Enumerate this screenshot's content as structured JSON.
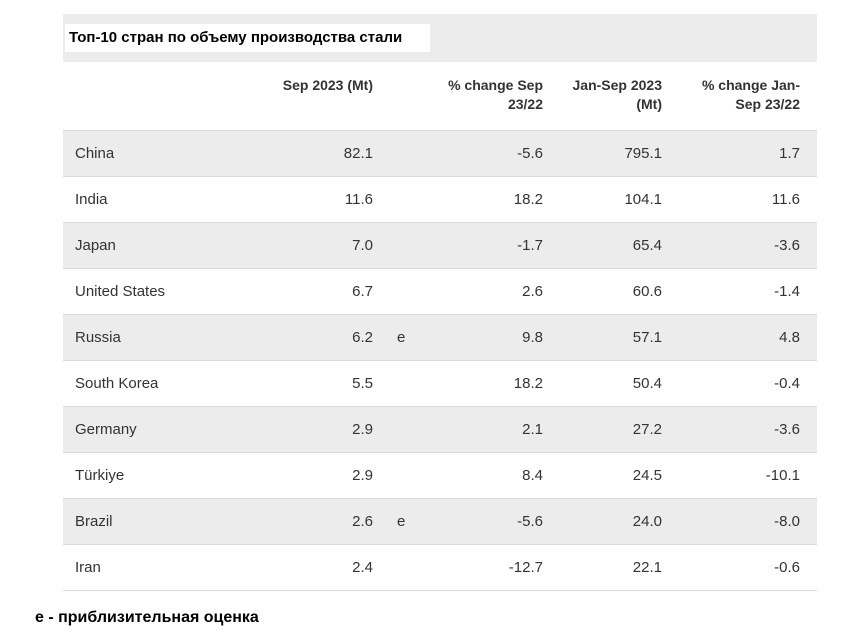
{
  "title": "Топ-10 стран по объему производства стали",
  "footnote": "e - приблизительная оценка",
  "colors": {
    "stripe_row": "#ececec",
    "title_bar": "#ececec",
    "title_highlight": "#ffffff",
    "row_border": "#dcdcdc",
    "text": "#333333"
  },
  "chart_data": {
    "type": "table",
    "title": "Топ-10 стран по объему производства стали",
    "footnote": "e - приблизительная оценка",
    "columns": {
      "country": "",
      "sep_2023_mt": "Sep 2023 (Mt)",
      "estimate_flag": "",
      "pct_change_sep_23_22": "% change Sep 23/22",
      "jan_sep_2023_mt": "Jan-Sep 2023 (Mt)",
      "pct_change_jan_sep_23_22": "% change Jan-Sep 23/22"
    },
    "rows": [
      {
        "country": "China",
        "sep_2023_mt": "82.1",
        "estimate_flag": "",
        "pct_change_sep_23_22": "-5.6",
        "jan_sep_2023_mt": "795.1",
        "pct_change_jan_sep_23_22": "1.7"
      },
      {
        "country": "India",
        "sep_2023_mt": "11.6",
        "estimate_flag": "",
        "pct_change_sep_23_22": "18.2",
        "jan_sep_2023_mt": "104.1",
        "pct_change_jan_sep_23_22": "11.6"
      },
      {
        "country": "Japan",
        "sep_2023_mt": "7.0",
        "estimate_flag": "",
        "pct_change_sep_23_22": "-1.7",
        "jan_sep_2023_mt": "65.4",
        "pct_change_jan_sep_23_22": "-3.6"
      },
      {
        "country": "United States",
        "sep_2023_mt": "6.7",
        "estimate_flag": "",
        "pct_change_sep_23_22": "2.6",
        "jan_sep_2023_mt": "60.6",
        "pct_change_jan_sep_23_22": "-1.4"
      },
      {
        "country": "Russia",
        "sep_2023_mt": "6.2",
        "estimate_flag": "e",
        "pct_change_sep_23_22": "9.8",
        "jan_sep_2023_mt": "57.1",
        "pct_change_jan_sep_23_22": "4.8"
      },
      {
        "country": "South Korea",
        "sep_2023_mt": "5.5",
        "estimate_flag": "",
        "pct_change_sep_23_22": "18.2",
        "jan_sep_2023_mt": "50.4",
        "pct_change_jan_sep_23_22": "-0.4"
      },
      {
        "country": "Germany",
        "sep_2023_mt": "2.9",
        "estimate_flag": "",
        "pct_change_sep_23_22": "2.1",
        "jan_sep_2023_mt": "27.2",
        "pct_change_jan_sep_23_22": "-3.6"
      },
      {
        "country": "Türkiye",
        "sep_2023_mt": "2.9",
        "estimate_flag": "",
        "pct_change_sep_23_22": "8.4",
        "jan_sep_2023_mt": "24.5",
        "pct_change_jan_sep_23_22": "-10.1"
      },
      {
        "country": "Brazil",
        "sep_2023_mt": "2.6",
        "estimate_flag": "e",
        "pct_change_sep_23_22": "-5.6",
        "jan_sep_2023_mt": "24.0",
        "pct_change_jan_sep_23_22": "-8.0"
      },
      {
        "country": "Iran",
        "sep_2023_mt": "2.4",
        "estimate_flag": "",
        "pct_change_sep_23_22": "-12.7",
        "jan_sep_2023_mt": "22.1",
        "pct_change_jan_sep_23_22": "-0.6"
      }
    ]
  }
}
